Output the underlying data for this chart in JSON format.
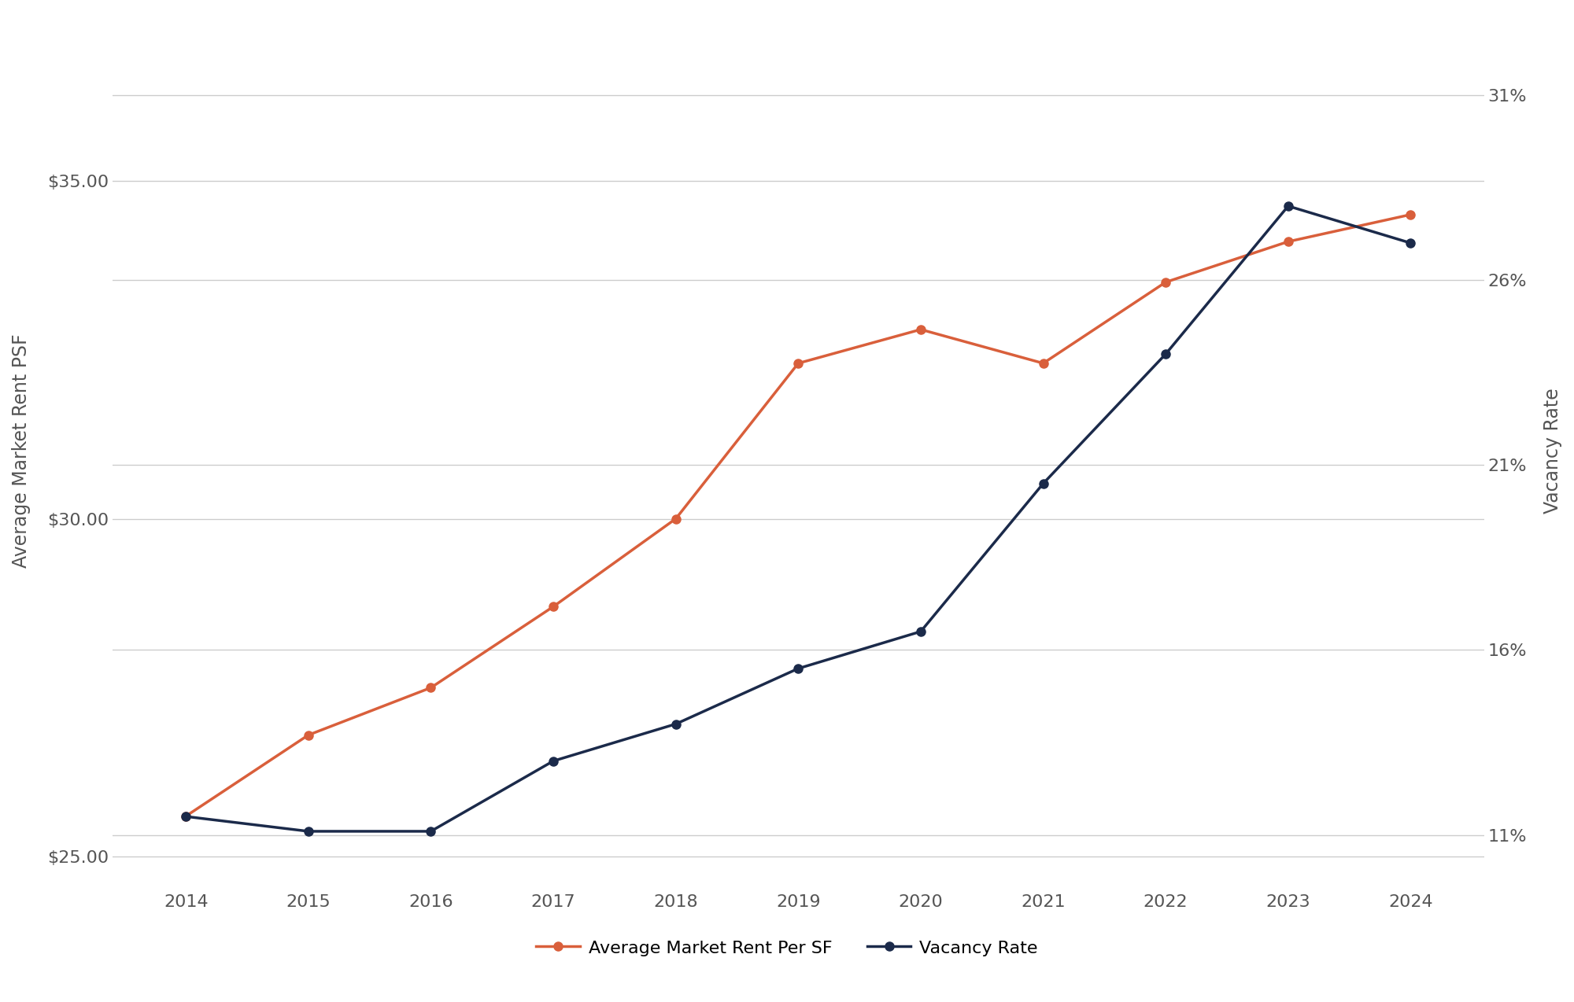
{
  "years": [
    2014,
    2015,
    2016,
    2017,
    2018,
    2019,
    2020,
    2021,
    2022,
    2023,
    2024
  ],
  "rent": [
    25.6,
    26.8,
    27.5,
    28.7,
    30.0,
    32.3,
    32.8,
    32.3,
    33.5,
    34.1,
    34.5
  ],
  "vacancy": [
    0.115,
    0.111,
    0.111,
    0.13,
    0.14,
    0.155,
    0.165,
    0.205,
    0.24,
    0.28,
    0.27
  ],
  "rent_color": "#D95F3B",
  "vacancy_color": "#1B2A4A",
  "background_color": "#FFFFFF",
  "ylabel_left": "Average Market Rent PSF",
  "ylabel_right": "Vacancy Rate",
  "ylim_left": [
    24.5,
    37.5
  ],
  "ylim_right": [
    0.095,
    0.3325
  ],
  "yticks_left": [
    25.0,
    30.0,
    35.0
  ],
  "yticks_right": [
    0.11,
    0.16,
    0.21,
    0.26,
    0.31
  ],
  "legend_rent": "Average Market Rent Per SF",
  "legend_vacancy": "Vacancy Rate",
  "grid_color": "#CCCCCC",
  "tick_color": "#555555",
  "label_fontsize": 17,
  "tick_fontsize": 16,
  "legend_fontsize": 16,
  "line_width": 2.5,
  "marker_size": 8
}
